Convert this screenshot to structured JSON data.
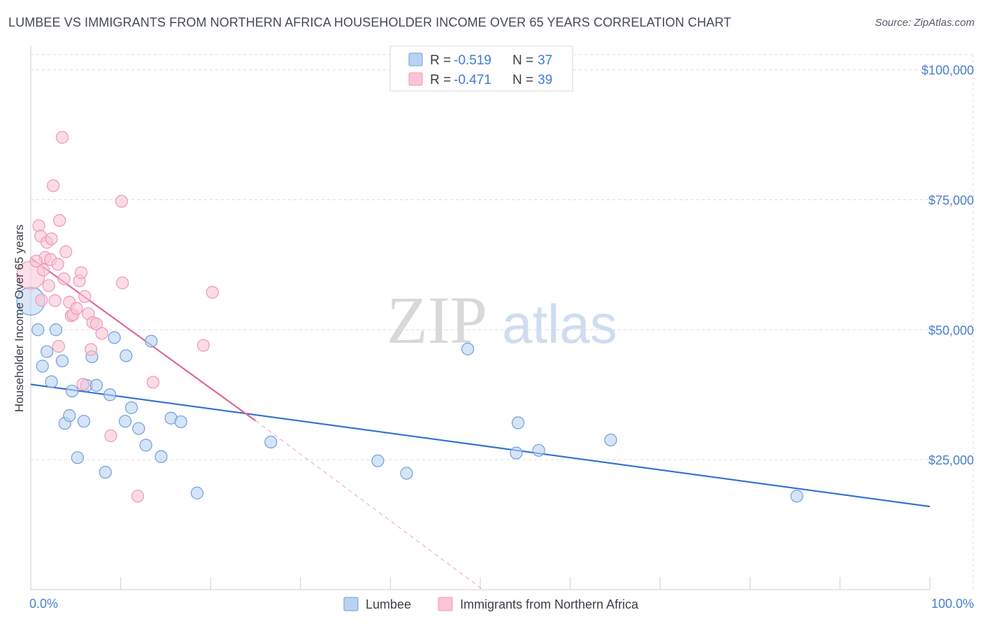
{
  "title": "LUMBEE VS IMMIGRANTS FROM NORTHERN AFRICA HOUSEHOLDER INCOME OVER 65 YEARS CORRELATION CHART",
  "source": "Source: ZipAtlas.com",
  "watermark": {
    "zip": "ZIP",
    "atlas": "atlas"
  },
  "chart_data": {
    "type": "scatter",
    "ylabel": "Householder Income Over 65 years",
    "xlim": [
      0,
      100
    ],
    "ylim": [
      0,
      104000
    ],
    "x_tick_labels": [
      {
        "value": 0,
        "label": "0.0%"
      },
      {
        "value": 100,
        "label": "100.0%"
      }
    ],
    "y_ticks": [
      {
        "value": 25000,
        "label": "$25,000"
      },
      {
        "value": 50000,
        "label": "$50,000"
      },
      {
        "value": 75000,
        "label": "$75,000"
      },
      {
        "value": 100000,
        "label": "$100,000"
      }
    ],
    "grid": true,
    "legend_position": "top-center",
    "series": [
      {
        "name": "Lumbee",
        "color": "#6f9fdf",
        "fill": "#b9d2f1",
        "line_color": "#2f6fd0",
        "stats": {
          "r_label": "R = ",
          "r_value": "-0.519",
          "n_label": "N = ",
          "n_value": "37"
        },
        "trend": {
          "x": [
            0,
            100
          ],
          "y": [
            39500,
            16000
          ]
        },
        "points": [
          {
            "x": 0.0,
            "y": 55500,
            "big": true
          },
          {
            "x": 0.8,
            "y": 50000
          },
          {
            "x": 1.3,
            "y": 43000
          },
          {
            "x": 1.8,
            "y": 45800
          },
          {
            "x": 2.3,
            "y": 40000
          },
          {
            "x": 2.8,
            "y": 50000
          },
          {
            "x": 3.5,
            "y": 44000
          },
          {
            "x": 3.8,
            "y": 32000
          },
          {
            "x": 4.3,
            "y": 33500
          },
          {
            "x": 4.6,
            "y": 38200
          },
          {
            "x": 5.2,
            "y": 25400
          },
          {
            "x": 5.9,
            "y": 32400
          },
          {
            "x": 6.2,
            "y": 39300
          },
          {
            "x": 6.8,
            "y": 44800
          },
          {
            "x": 7.3,
            "y": 39300
          },
          {
            "x": 8.3,
            "y": 22600
          },
          {
            "x": 8.8,
            "y": 37500
          },
          {
            "x": 9.3,
            "y": 48500
          },
          {
            "x": 10.5,
            "y": 32400
          },
          {
            "x": 10.6,
            "y": 45000
          },
          {
            "x": 11.2,
            "y": 35000
          },
          {
            "x": 12.0,
            "y": 31000
          },
          {
            "x": 12.8,
            "y": 27800
          },
          {
            "x": 13.4,
            "y": 47800
          },
          {
            "x": 14.5,
            "y": 25600
          },
          {
            "x": 15.6,
            "y": 33000
          },
          {
            "x": 16.7,
            "y": 32300
          },
          {
            "x": 18.5,
            "y": 18600
          },
          {
            "x": 26.7,
            "y": 28400
          },
          {
            "x": 38.6,
            "y": 24800
          },
          {
            "x": 41.8,
            "y": 22400
          },
          {
            "x": 48.6,
            "y": 46300
          },
          {
            "x": 54.0,
            "y": 26300
          },
          {
            "x": 54.2,
            "y": 32100
          },
          {
            "x": 56.5,
            "y": 26800
          },
          {
            "x": 64.5,
            "y": 28800
          },
          {
            "x": 85.2,
            "y": 18000
          }
        ]
      },
      {
        "name": "Immigrants from Northern Africa",
        "color": "#ef98b4",
        "fill": "#f9c5d6",
        "line_color": "#e0699a",
        "stats": {
          "r_label": "R = ",
          "r_value": "-0.471",
          "n_label": "N = ",
          "n_value": "39"
        },
        "trend": {
          "x": [
            0,
            25
          ],
          "y": [
            63800,
            32500
          ]
        },
        "trend_extension": {
          "x": [
            25,
            50.3
          ],
          "y": [
            32500,
            0
          ]
        },
        "points": [
          {
            "x": 0.0,
            "y": 60500,
            "big": true
          },
          {
            "x": 0.9,
            "y": 70000
          },
          {
            "x": 1.1,
            "y": 68000
          },
          {
            "x": 1.4,
            "y": 61500
          },
          {
            "x": 1.6,
            "y": 63900
          },
          {
            "x": 1.8,
            "y": 66800
          },
          {
            "x": 2.0,
            "y": 58500
          },
          {
            "x": 2.2,
            "y": 63500
          },
          {
            "x": 2.3,
            "y": 67500
          },
          {
            "x": 2.5,
            "y": 77700
          },
          {
            "x": 2.7,
            "y": 55600
          },
          {
            "x": 3.0,
            "y": 62600
          },
          {
            "x": 3.1,
            "y": 46800
          },
          {
            "x": 3.2,
            "y": 71000
          },
          {
            "x": 3.5,
            "y": 87000
          },
          {
            "x": 3.7,
            "y": 59800
          },
          {
            "x": 3.9,
            "y": 65000
          },
          {
            "x": 4.3,
            "y": 55300
          },
          {
            "x": 4.5,
            "y": 52700
          },
          {
            "x": 4.7,
            "y": 52900
          },
          {
            "x": 5.1,
            "y": 54100
          },
          {
            "x": 5.4,
            "y": 59400
          },
          {
            "x": 5.6,
            "y": 61000
          },
          {
            "x": 5.8,
            "y": 39500
          },
          {
            "x": 6.0,
            "y": 56400
          },
          {
            "x": 6.4,
            "y": 53100
          },
          {
            "x": 6.7,
            "y": 46200
          },
          {
            "x": 6.9,
            "y": 51400
          },
          {
            "x": 7.3,
            "y": 51100
          },
          {
            "x": 7.9,
            "y": 49300
          },
          {
            "x": 8.9,
            "y": 29600
          },
          {
            "x": 10.1,
            "y": 74700
          },
          {
            "x": 10.2,
            "y": 59000
          },
          {
            "x": 11.9,
            "y": 18000
          },
          {
            "x": 13.6,
            "y": 39900
          },
          {
            "x": 19.2,
            "y": 47000
          },
          {
            "x": 20.2,
            "y": 57200
          },
          {
            "x": 1.2,
            "y": 55700
          },
          {
            "x": 0.6,
            "y": 63200
          }
        ]
      }
    ]
  }
}
